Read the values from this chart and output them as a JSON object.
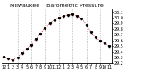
{
  "title": "Milwaukee    Barometric Pressure",
  "hours": [
    0,
    1,
    2,
    3,
    4,
    5,
    6,
    7,
    8,
    9,
    10,
    11,
    12,
    13,
    14,
    15,
    16,
    17,
    18,
    19,
    20,
    21,
    22,
    23
  ],
  "pressure": [
    29.32,
    29.28,
    29.25,
    29.3,
    29.38,
    29.45,
    29.52,
    29.62,
    29.72,
    29.82,
    29.9,
    29.96,
    30.0,
    30.03,
    30.05,
    30.06,
    30.03,
    29.98,
    29.88,
    29.75,
    29.65,
    29.6,
    29.55,
    29.5
  ],
  "line_color": "#dd0000",
  "marker_color": "#000000",
  "bg_color": "#ffffff",
  "grid_color": "#999999",
  "ylim_min": 29.2,
  "ylim_max": 30.15,
  "title_fontsize": 4.5,
  "tick_fontsize": 3.5,
  "ytick_values": [
    29.2,
    29.3,
    29.4,
    29.5,
    29.6,
    29.7,
    29.8,
    29.9,
    30.0,
    30.1
  ],
  "ytick_labels": [
    "29.2",
    "29.3",
    "29.4",
    "29.5",
    "29.6",
    "29.7",
    "29.8",
    "29.9",
    "30.0",
    "30.1"
  ],
  "xtick_positions": [
    0,
    1,
    2,
    3,
    4,
    5,
    6,
    7,
    8,
    9,
    10,
    11,
    12,
    13,
    14,
    15,
    16,
    17,
    18,
    19,
    20,
    21,
    22,
    23
  ],
  "xtick_labels": [
    "12",
    "1",
    "2",
    "3",
    "4",
    "5",
    "6",
    "7",
    "8",
    "9",
    "10",
    "11",
    "12",
    "1",
    "2",
    "3",
    "4",
    "5",
    "6",
    "7",
    "8",
    "9",
    "10",
    "11"
  ],
  "vgrid_positions": [
    0,
    3,
    6,
    9,
    12,
    15,
    18,
    21
  ]
}
